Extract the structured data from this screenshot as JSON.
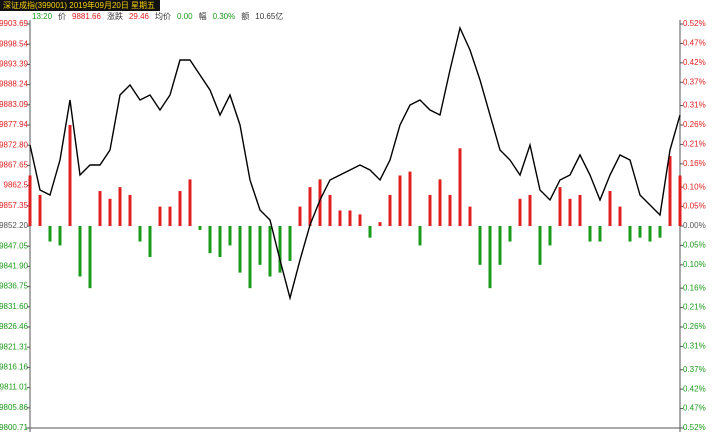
{
  "chart_data": {
    "type": "line",
    "title": "深证成指(399001) 2019年09月20日 星期五",
    "info": [
      {
        "text": "13:20",
        "color": "#1a9a1a"
      },
      {
        "text": "价",
        "color": "#333333"
      },
      {
        "text": "9881.66",
        "color": "#e02020"
      },
      {
        "text": "涨跌",
        "color": "#333333"
      },
      {
        "text": "29.46",
        "color": "#e02020"
      },
      {
        "text": "均价",
        "color": "#333333"
      },
      {
        "text": "0.00",
        "color": "#1a9a1a"
      },
      {
        "text": "幅",
        "color": "#333333"
      },
      {
        "text": "0.30%",
        "color": "#1a9a1a"
      },
      {
        "text": "额",
        "color": "#333333"
      },
      {
        "text": "10.65亿",
        "color": "#333333"
      }
    ],
    "values": [
      9872.85,
      9861.38,
      9860.1,
      9869.02,
      9884.32,
      9865.2,
      9867.75,
      9867.75,
      9871.57,
      9885.59,
      9888.14,
      9884.32,
      9885.59,
      9881.77,
      9885.59,
      9894.51,
      9894.51,
      9890.69,
      9886.87,
      9880.49,
      9885.59,
      9877.95,
      9863.93,
      9856.28,
      9853.73,
      9843.53,
      9833.85,
      9843.53,
      9852.46,
      9858.83,
      9863.93,
      9865.2,
      9866.48,
      9867.75,
      9866.48,
      9863.93,
      9869.02,
      9877.95,
      9883.04,
      9884.32,
      9881.77,
      9880.49,
      9891.96,
      9902.67,
      9897.06,
      9889.42,
      9880.49,
      9871.57,
      9869.02,
      9865.2,
      9872.85,
      9861.38,
      9858.83,
      9863.93,
      9865.2,
      9870.3,
      9865.2,
      9858.83,
      9865.2,
      9870.3,
      9869.02,
      9860.1,
      9857.55,
      9855.0,
      9871.57,
      9880.49
    ],
    "color": "#000000",
    "bar_values": [
      0.13,
      0.08,
      -0.04,
      -0.05,
      0.26,
      -0.13,
      -0.16,
      0.09,
      0.07,
      0.1,
      0.08,
      -0.04,
      -0.08,
      0.05,
      0.05,
      0.09,
      0.12,
      -0.01,
      -0.07,
      -0.08,
      -0.05,
      -0.12,
      -0.16,
      -0.1,
      -0.13,
      -0.12,
      -0.09,
      0.05,
      0.1,
      0.12,
      0.08,
      0.04,
      0.04,
      0.03,
      -0.03,
      0.01,
      0.08,
      0.13,
      0.14,
      -0.05,
      0.08,
      0.12,
      0.08,
      0.2,
      0.05,
      -0.1,
      -0.16,
      -0.1,
      -0.04,
      0.07,
      0.08,
      -0.1,
      -0.05,
      0.1,
      0.07,
      0.08,
      -0.04,
      -0.04,
      0.09,
      0.05,
      -0.04,
      -0.03,
      -0.04,
      -0.03,
      0.18,
      0.13
    ],
    "up_color": "#e02020",
    "down_color": "#1a9a1a",
    "ylim": [
      9800.71,
      9903.69
    ],
    "yticks": [
      9903.69,
      9898.54,
      9893.39,
      9888.24,
      9883.09,
      9877.94,
      {
        "value": 9872.8,
        "label": "9872.80"
      },
      9867.65,
      9862.5,
      9857.35,
      {
        "value": 9852.2,
        "label": "9852.20"
      },
      9847.05,
      {
        "value": 9841.9,
        "label": "9841.90"
      },
      9836.75,
      {
        "value": 9831.6,
        "label": "9831.60"
      },
      9826.46,
      9821.31,
      9816.16,
      9811.01,
      9805.86,
      9800.71
    ],
    "y2lim": [
      -0.52,
      0.52
    ],
    "y2ticks": [
      {
        "value": 0.52,
        "label": "0.52%"
      },
      {
        "value": 0.47,
        "label": "0.47%"
      },
      {
        "value": 0.42,
        "label": "0.42%"
      },
      {
        "value": 0.37,
        "label": "0.37%"
      },
      {
        "value": 0.31,
        "label": "0.31%"
      },
      {
        "value": 0.26,
        "label": "0.26%"
      },
      {
        "value": 0.21,
        "label": "0.21%"
      },
      {
        "value": 0.16,
        "label": "0.16%"
      },
      {
        "value": 0.1,
        "label": "0.10%"
      },
      {
        "value": 0.05,
        "label": "0.05%"
      },
      {
        "value": 0,
        "label": "0.00%"
      },
      {
        "value": -0.05,
        "label": "0.05%"
      },
      {
        "value": -0.1,
        "label": "0.10%"
      },
      {
        "value": -0.16,
        "label": "0.16%"
      },
      {
        "value": -0.21,
        "label": "0.21%"
      },
      {
        "value": -0.26,
        "label": "0.26%"
      },
      {
        "value": -0.31,
        "label": "0.31%"
      },
      {
        "value": -0.37,
        "label": "0.37%"
      },
      {
        "value": -0.42,
        "label": "0.42%"
      },
      {
        "value": -0.47,
        "label": "0.47%"
      },
      {
        "value": -0.52,
        "label": "0.52%"
      }
    ],
    "grid": false
  }
}
